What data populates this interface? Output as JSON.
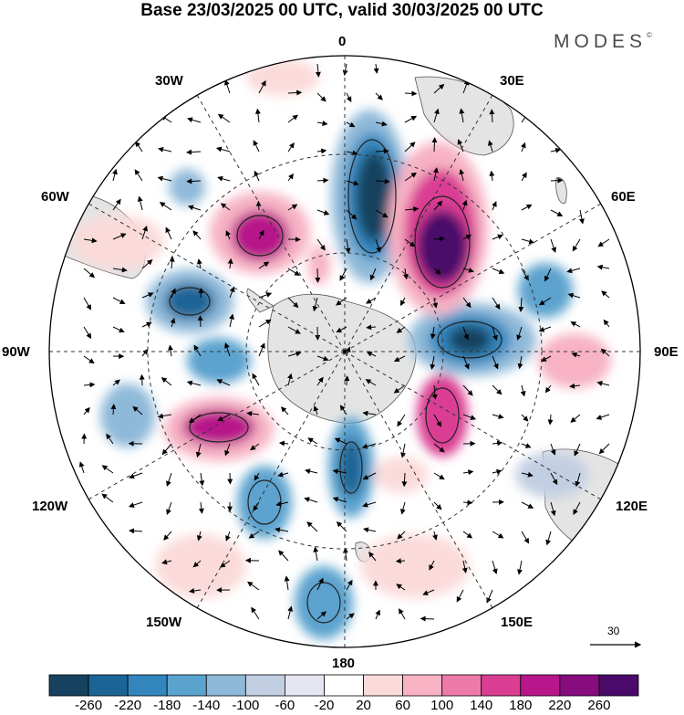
{
  "title": "Base 23/03/2025 00 UTC, valid 30/03/2025 00 UTC",
  "logo": "MODES",
  "logo_mark": "©",
  "lon_labels": {
    "l0": "0",
    "l30e": "30E",
    "l60e": "60E",
    "l90e": "90E",
    "l120e": "120E",
    "l150e": "150E",
    "l180": "180",
    "l150w": "150W",
    "l120w": "120W",
    "l90w": "90W",
    "l60w": "60W",
    "l30w": "30W"
  },
  "reference_vector": "30",
  "colorbar": {
    "colors": [
      "#16425f",
      "#1b6596",
      "#3386bd",
      "#5ba3cf",
      "#8fb9d9",
      "#c2cfe3",
      "#e6e6f2",
      "#ffffff",
      "#fbdada",
      "#f7b2c4",
      "#ee7aa9",
      "#da3e93",
      "#b7178a",
      "#860b7d",
      "#4a0a6a"
    ],
    "ticks": [
      "-260",
      "-220",
      "-180",
      "-140",
      "-100",
      "-60",
      "-20",
      "20",
      "60",
      "100",
      "140",
      "180",
      "220",
      "260"
    ]
  },
  "colors": {
    "land": "#e4e4e4",
    "coast": "#555555"
  }
}
